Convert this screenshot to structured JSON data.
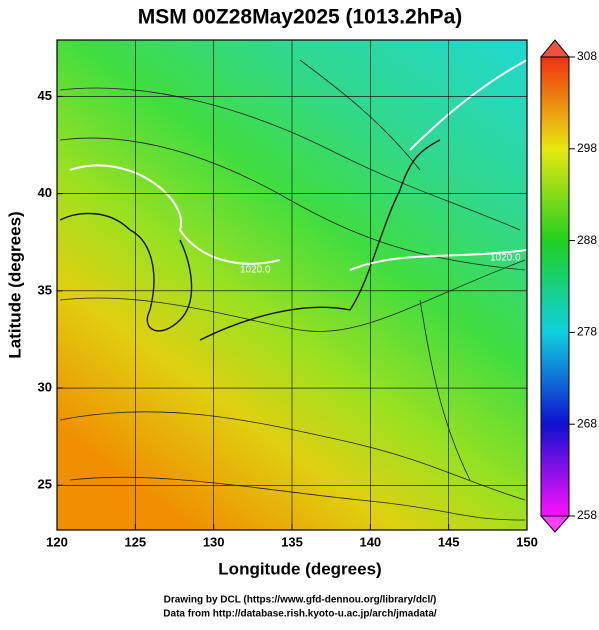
{
  "map": {
    "title": "MSM 00Z28May2025 (1013.2hPa)",
    "xlabel": "Longitude (degrees)",
    "ylabel": "Latitude  (degrees)",
    "xlim": [
      120,
      150
    ],
    "ylim": [
      22.7,
      47.9
    ],
    "xticks": [
      120,
      125,
      130,
      135,
      140,
      145,
      150
    ],
    "yticks": [
      25,
      30,
      35,
      40,
      45
    ],
    "contour_labels": [
      "1020.0",
      "1020.0"
    ],
    "colorbar": {
      "lim": [
        258,
        308
      ],
      "ticks": [
        258,
        268,
        278,
        288,
        298,
        308
      ]
    }
  },
  "credits": [
    "Drawing by DCL (https://www.gfd-dennou.org/library/dcl/)",
    "Data from http://database.rish.kyoto-u.ac.jp/arch/jmadata/"
  ]
}
